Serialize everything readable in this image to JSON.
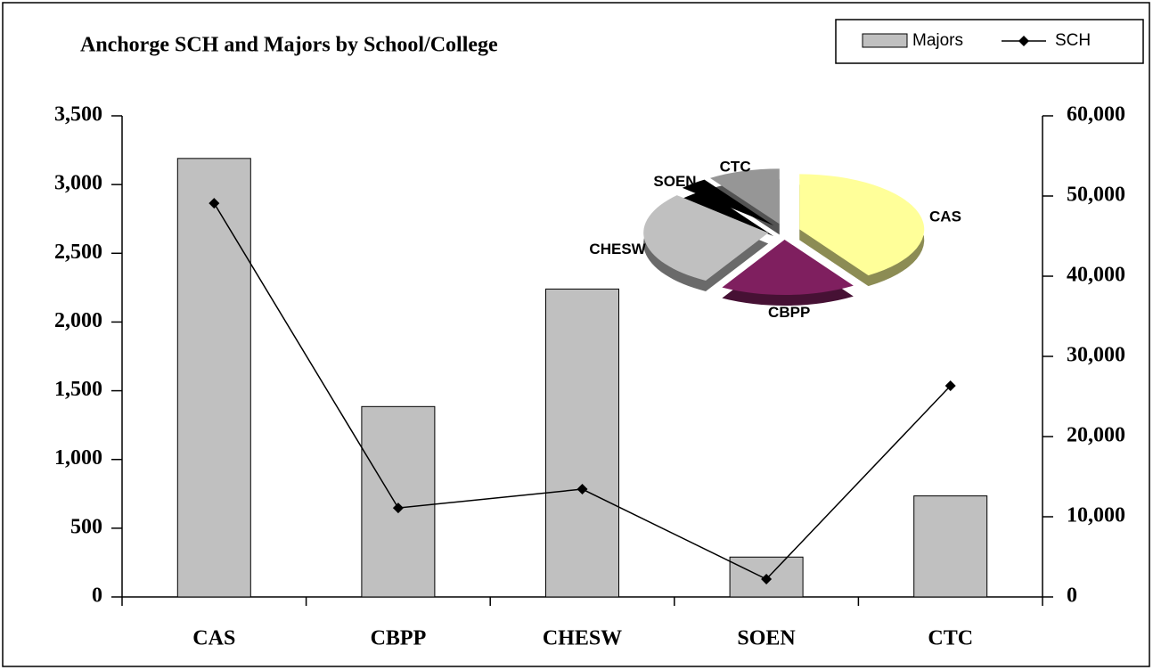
{
  "chart_data": {
    "type": "bar_line_pie",
    "title": "Anchorge SCH and Majors by School/College",
    "categories": [
      "CAS",
      "CBPP",
      "CHESW",
      "SOEN",
      "CTC"
    ],
    "series": [
      {
        "name": "Majors",
        "type": "bar",
        "color": "#c0c0c0",
        "values": [
          3190,
          1385,
          2240,
          290,
          735
        ]
      },
      {
        "name": "SCH",
        "type": "line",
        "axis": "y2",
        "color": "#000000",
        "values": [
          49100,
          11100,
          13440,
          2220,
          26330
        ]
      }
    ],
    "ylim": [
      0,
      3500
    ],
    "yticks": [
      0,
      {
        "value": 500,
        "label": "500"
      },
      {
        "value": 1000,
        "label": "1,000"
      },
      {
        "value": 1500,
        "label": "1,500"
      },
      {
        "value": 2000,
        "label": "2,000"
      },
      {
        "value": 2500,
        "label": "2,500"
      },
      {
        "value": 3000,
        "label": "3,000"
      },
      {
        "value": 3500,
        "label": "3,500"
      }
    ],
    "y2lim": [
      0,
      60000
    ],
    "y2ticks": [
      0,
      {
        "value": 10000,
        "label": "10,000"
      },
      {
        "value": 20000,
        "label": "20,000"
      },
      {
        "value": 30000,
        "label": "30,000"
      },
      {
        "value": 40000,
        "label": "40,000"
      },
      {
        "value": 50000,
        "label": "50,000"
      },
      {
        "value": 60000,
        "label": "60,000"
      }
    ],
    "legend": "top-right",
    "pie_colors": [
      "#ffff99",
      "#7f1f5f",
      "#c0c0c0",
      "#000000",
      "#969696"
    ]
  }
}
